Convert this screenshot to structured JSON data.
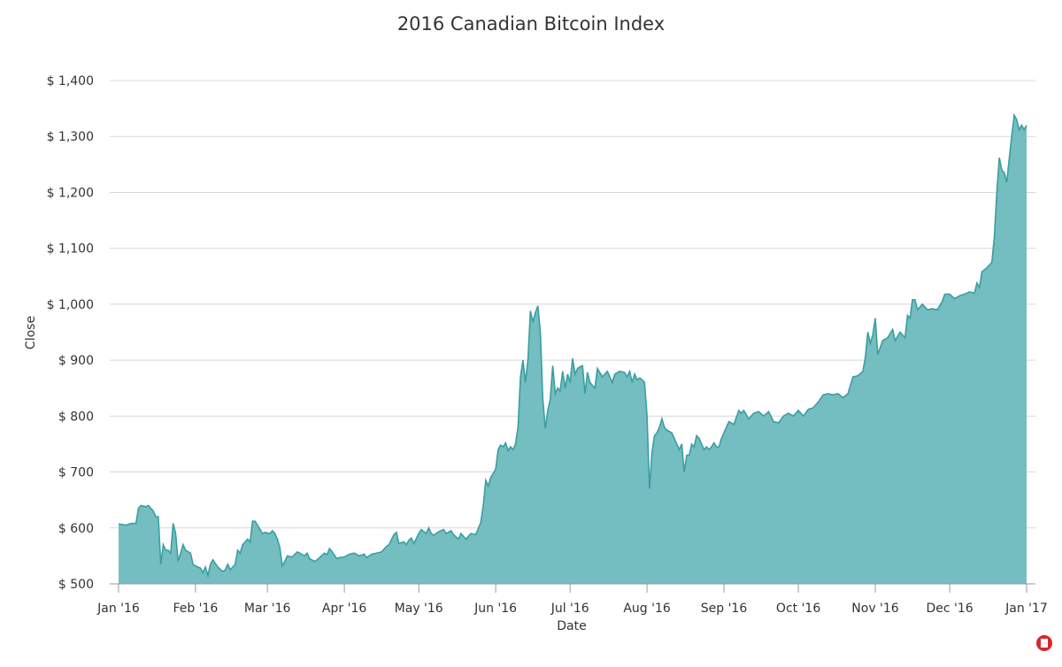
{
  "chart_data": {
    "type": "area",
    "title": "2016 Canadian Bitcoin Index",
    "x_label": "Date",
    "y_label": "Close",
    "color": "#74bdc0",
    "line_color": "#3a9ea0",
    "grid": true,
    "xlim": [
      0,
      366
    ],
    "xticks": [
      {
        "value": 0,
        "label": "Jan '16"
      },
      {
        "value": 31,
        "label": "Feb '16"
      },
      {
        "value": 60,
        "label": "Mar '16"
      },
      {
        "value": 91,
        "label": "Apr '16"
      },
      {
        "value": 121,
        "label": "May '16"
      },
      {
        "value": 152,
        "label": "Jun '16"
      },
      {
        "value": 182,
        "label": "Jul '16"
      },
      {
        "value": 213,
        "label": "Aug '16"
      },
      {
        "value": 244,
        "label": "Sep '16"
      },
      {
        "value": 274,
        "label": "Oct '16"
      },
      {
        "value": 305,
        "label": "Nov '16"
      },
      {
        "value": 335,
        "label": "Dec '16"
      },
      {
        "value": 366,
        "label": "Jan '17"
      }
    ],
    "ylim": [
      500,
      1400
    ],
    "yticks": [
      {
        "value": 500,
        "label": "$ 500"
      },
      {
        "value": 600,
        "label": "$ 600"
      },
      {
        "value": 700,
        "label": "$ 700"
      },
      {
        "value": 800,
        "label": "$ 800"
      },
      {
        "value": 900,
        "label": "$ 900"
      },
      {
        "value": 1000,
        "label": "$ 1,000"
      },
      {
        "value": 1100,
        "label": "$ 1,100"
      },
      {
        "value": 1200,
        "label": "$ 1,200"
      },
      {
        "value": 1300,
        "label": "$ 1,300"
      },
      {
        "value": 1400,
        "label": "$ 1,400"
      }
    ],
    "x": [
      0,
      3,
      5,
      7,
      8,
      9,
      11,
      12,
      14,
      15,
      16,
      17,
      18,
      19,
      20,
      21,
      22,
      23,
      24,
      26,
      27,
      29,
      30,
      31,
      33,
      34,
      35,
      36,
      37,
      38,
      40,
      42,
      43,
      44,
      45,
      47,
      48,
      49,
      50,
      52,
      53,
      54,
      55,
      56,
      58,
      59,
      61,
      62,
      63,
      64,
      65,
      66,
      67,
      68,
      70,
      72,
      73,
      75,
      76,
      77,
      79,
      80,
      83,
      84,
      85,
      86,
      88,
      89,
      91,
      93,
      95,
      97,
      99,
      100,
      102,
      104,
      106,
      108,
      109,
      111,
      112,
      113,
      115,
      116,
      117,
      118,
      119,
      121,
      122,
      124,
      125,
      126,
      127,
      129,
      131,
      132,
      134,
      135,
      137,
      138,
      140,
      142,
      144,
      146,
      147,
      148,
      149,
      150,
      152,
      153,
      154,
      155,
      156,
      157,
      158,
      159,
      160,
      161,
      162,
      163,
      164,
      165,
      166,
      167,
      168,
      169,
      170,
      171,
      172,
      173,
      174,
      175,
      176,
      177,
      178,
      179,
      180,
      181,
      182,
      183,
      184,
      185,
      186,
      187,
      188,
      189,
      190,
      192,
      193,
      195,
      197,
      199,
      200,
      202,
      204,
      205,
      206,
      207,
      208,
      209,
      210,
      211,
      212,
      213,
      214,
      215,
      216,
      217,
      218,
      219,
      220,
      221,
      223,
      224,
      225,
      226,
      227,
      228,
      229,
      230,
      231,
      232,
      233,
      234,
      235,
      236,
      237,
      238,
      239,
      240,
      241,
      242,
      243,
      244,
      246,
      248,
      250,
      251,
      252,
      254,
      256,
      258,
      260,
      262,
      264,
      266,
      268,
      270,
      272,
      274,
      276,
      278,
      280,
      282,
      284,
      286,
      288,
      290,
      292,
      294,
      296,
      298,
      300,
      301,
      302,
      303,
      304,
      305,
      306,
      308,
      310,
      312,
      313,
      315,
      317,
      318,
      319,
      320,
      321,
      322,
      324,
      326,
      328,
      330,
      332,
      333,
      335,
      337,
      339,
      341,
      343,
      345,
      346,
      347,
      348,
      350,
      352,
      353,
      354,
      355,
      356,
      357,
      358,
      359,
      360,
      361,
      362,
      363,
      364,
      365,
      366
    ],
    "values": [
      607,
      605,
      608,
      608,
      635,
      640,
      638,
      640,
      630,
      620,
      620,
      535,
      570,
      560,
      560,
      555,
      608,
      590,
      540,
      570,
      560,
      555,
      535,
      532,
      528,
      520,
      530,
      515,
      535,
      543,
      530,
      522,
      525,
      535,
      525,
      535,
      560,
      555,
      570,
      580,
      575,
      612,
      612,
      605,
      590,
      592,
      590,
      595,
      590,
      580,
      565,
      532,
      540,
      550,
      548,
      557,
      555,
      550,
      555,
      545,
      540,
      543,
      555,
      552,
      563,
      558,
      545,
      547,
      548,
      553,
      555,
      550,
      553,
      547,
      553,
      555,
      557,
      567,
      570,
      588,
      592,
      572,
      575,
      570,
      578,
      582,
      572,
      590,
      597,
      590,
      600,
      590,
      587,
      593,
      597,
      590,
      595,
      588,
      580,
      590,
      580,
      590,
      588,
      610,
      640,
      685,
      675,
      690,
      705,
      740,
      748,
      745,
      752,
      738,
      745,
      740,
      750,
      780,
      870,
      900,
      860,
      900,
      988,
      968,
      985,
      997,
      950,
      830,
      778,
      810,
      830,
      890,
      840,
      850,
      845,
      880,
      850,
      875,
      860,
      903,
      875,
      885,
      888,
      890,
      840,
      878,
      860,
      850,
      885,
      870,
      880,
      860,
      875,
      880,
      878,
      870,
      880,
      860,
      875,
      865,
      868,
      865,
      860,
      800,
      670,
      735,
      765,
      770,
      780,
      795,
      780,
      775,
      770,
      760,
      750,
      740,
      750,
      700,
      730,
      730,
      750,
      745,
      765,
      760,
      750,
      740,
      745,
      740,
      745,
      752,
      745,
      745,
      760,
      770,
      790,
      785,
      810,
      805,
      810,
      795,
      805,
      808,
      800,
      808,
      790,
      788,
      800,
      805,
      800,
      810,
      800,
      812,
      815,
      825,
      838,
      840,
      838,
      840,
      833,
      840,
      870,
      872,
      880,
      905,
      950,
      930,
      945,
      975,
      910,
      935,
      940,
      955,
      935,
      950,
      940,
      980,
      975,
      1008,
      1008,
      990,
      1000,
      990,
      992,
      990,
      1005,
      1018,
      1018,
      1010,
      1015,
      1018,
      1022,
      1020,
      1038,
      1030,
      1058,
      1065,
      1075,
      1120,
      1200,
      1262,
      1240,
      1235,
      1218,
      1260,
      1300,
      1338,
      1330,
      1312,
      1320,
      1312,
      1320
    ]
  }
}
